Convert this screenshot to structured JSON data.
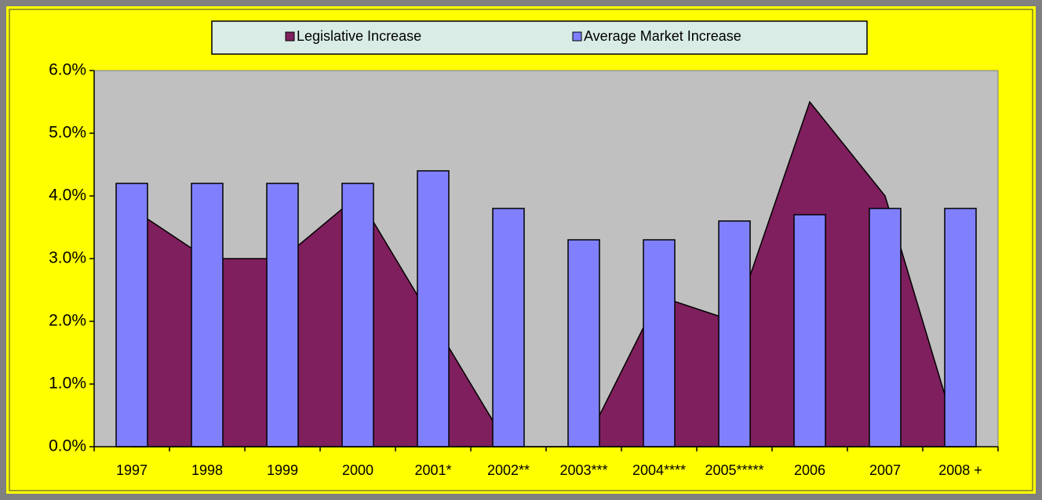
{
  "chart_data": {
    "type": "bar_area",
    "categories": [
      "1997",
      "1998",
      "1999",
      "2000",
      "2001*",
      "2002**",
      "2003***",
      "2004****",
      "2005*****",
      "2006",
      "2007",
      "2008 +"
    ],
    "series": [
      {
        "name": "Legislative Increase",
        "type": "area",
        "color": "#7f1f5e",
        "values": [
          3.8,
          3.0,
          3.0,
          4.0,
          2.0,
          0,
          0,
          2.4,
          2.0,
          5.5,
          4.0,
          0
        ]
      },
      {
        "name": "Average Market Increase",
        "type": "bar",
        "color": "#8080ff",
        "values": [
          4.2,
          4.2,
          4.2,
          4.2,
          4.4,
          3.8,
          3.3,
          3.3,
          3.6,
          3.7,
          3.8,
          3.8
        ]
      }
    ],
    "ylim": [
      0,
      6
    ],
    "yticks": [
      {
        "value": 0,
        "label": "0.0%"
      },
      {
        "value": 1,
        "label": "1.0%"
      },
      {
        "value": 2,
        "label": "2.0%"
      },
      {
        "value": 3,
        "label": "3.0%"
      },
      {
        "value": 4,
        "label": "4.0%"
      },
      {
        "value": 5,
        "label": "5.0%"
      },
      {
        "value": 6,
        "label": "6.0%"
      }
    ],
    "legend": "top"
  }
}
